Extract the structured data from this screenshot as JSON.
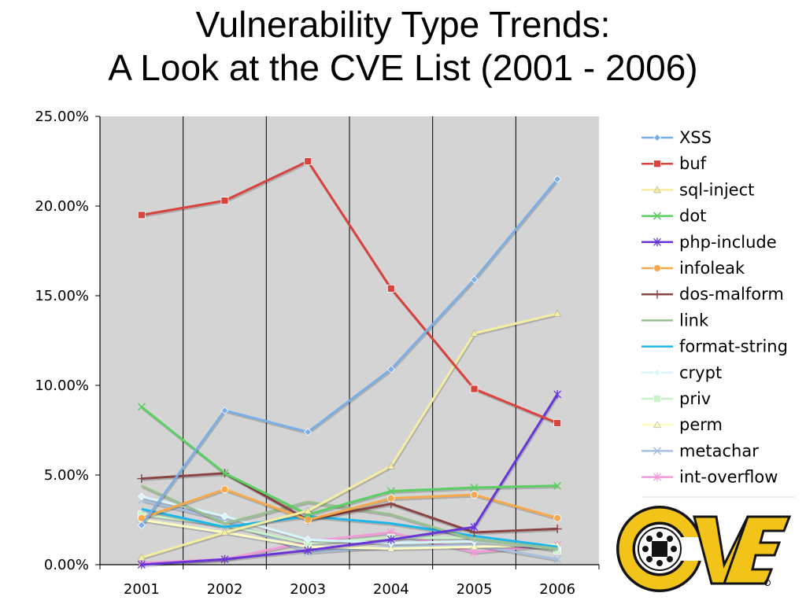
{
  "title_line1": "Vulnerability Type Trends:",
  "title_line2": "A Look at the CVE List (2001 - 2006)",
  "chart_data": {
    "type": "line",
    "categories": [
      "2001",
      "2002",
      "2003",
      "2004",
      "2005",
      "2006"
    ],
    "ylim": [
      0,
      25
    ],
    "yticks": [
      "0.00%",
      "5.00%",
      "10.00%",
      "15.00%",
      "20.00%",
      "25.00%"
    ],
    "plot_background": "#d4d4d4",
    "legend_position": "right",
    "series": [
      {
        "name": "XSS",
        "color": "#7aaee6",
        "marker": "diamond",
        "values": [
          2.2,
          8.6,
          7.4,
          10.9,
          15.9,
          21.5
        ]
      },
      {
        "name": "buf",
        "color": "#d9433e",
        "marker": "square",
        "values": [
          19.5,
          20.3,
          22.5,
          15.4,
          9.8,
          7.9
        ]
      },
      {
        "name": "sql-inject",
        "color": "#f5eea0",
        "marker": "triangle",
        "values": [
          0.4,
          1.8,
          3.0,
          5.5,
          12.9,
          14.0
        ]
      },
      {
        "name": "dot",
        "color": "#5bcf63",
        "marker": "x",
        "values": [
          8.8,
          5.1,
          2.8,
          4.1,
          4.3,
          4.4
        ]
      },
      {
        "name": "php-include",
        "color": "#6a35d8",
        "marker": "star",
        "values": [
          0.0,
          0.3,
          0.8,
          1.4,
          2.1,
          9.5
        ]
      },
      {
        "name": "infoleak",
        "color": "#f6a94c",
        "marker": "circle",
        "values": [
          2.6,
          4.2,
          2.5,
          3.7,
          3.9,
          2.6
        ]
      },
      {
        "name": "dos-malform",
        "color": "#8a4444",
        "marker": "plus",
        "values": [
          4.8,
          5.1,
          2.5,
          3.4,
          1.8,
          2.0
        ]
      },
      {
        "name": "link",
        "color": "#9abf90",
        "marker": "none",
        "values": [
          4.4,
          2.3,
          3.5,
          2.8,
          1.4,
          0.9
        ]
      },
      {
        "name": "format-string",
        "color": "#1eb6e8",
        "marker": "none",
        "values": [
          3.1,
          2.1,
          2.7,
          2.3,
          1.6,
          1.0
        ]
      },
      {
        "name": "crypt",
        "color": "#d6f6fc",
        "marker": "diamond",
        "values": [
          3.8,
          2.7,
          1.4,
          1.2,
          1.3,
          0.9
        ]
      },
      {
        "name": "priv",
        "color": "#c8f2c8",
        "marker": "square",
        "values": [
          2.8,
          2.2,
          1.2,
          1.5,
          1.5,
          0.8
        ]
      },
      {
        "name": "perm",
        "color": "#fefec4",
        "marker": "triangle",
        "values": [
          2.5,
          1.8,
          1.0,
          0.9,
          1.0,
          1.1
        ]
      },
      {
        "name": "metachar",
        "color": "#a8c0e0",
        "marker": "x",
        "values": [
          3.6,
          2.5,
          0.7,
          1.0,
          1.1,
          0.3
        ]
      },
      {
        "name": "int-overflow",
        "color": "#f29ad8",
        "marker": "star",
        "values": [
          0.1,
          0.3,
          1.3,
          1.8,
          0.7,
          1.1
        ]
      }
    ]
  },
  "logo": {
    "text": "CVE",
    "colors": {
      "gold": "#f2c318",
      "dark": "#141414"
    }
  }
}
